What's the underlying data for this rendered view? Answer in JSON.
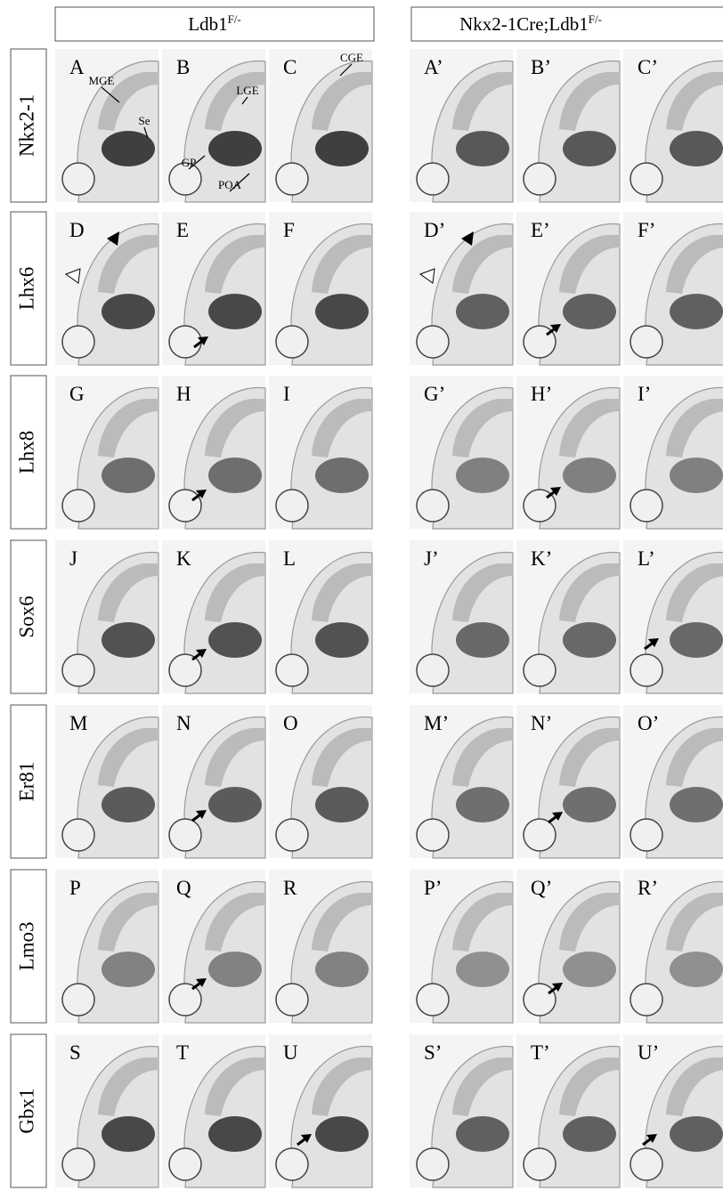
{
  "headers": [
    {
      "main": "Ldb1",
      "sup": "F/-"
    },
    {
      "main": "Nkx2-1Cre;Ldb1",
      "sup": "F/-"
    }
  ],
  "rows": [
    {
      "label": "Nkx2-1",
      "panels": [
        {
          "letter": "A",
          "annotations": [
            "MGE",
            "Se"
          ]
        },
        {
          "letter": "B",
          "annotations": [
            "LGE",
            "GP",
            "POA"
          ]
        },
        {
          "letter": "C",
          "annotations": [
            "CGE"
          ]
        },
        {
          "letter": "A’"
        },
        {
          "letter": "B’"
        },
        {
          "letter": "C’"
        }
      ]
    },
    {
      "label": "Lhx6",
      "panels": [
        {
          "letter": "D"
        },
        {
          "letter": "E"
        },
        {
          "letter": "F"
        },
        {
          "letter": "D’"
        },
        {
          "letter": "E’"
        },
        {
          "letter": "F’"
        }
      ]
    },
    {
      "label": "Lhx8",
      "panels": [
        {
          "letter": "G"
        },
        {
          "letter": "H"
        },
        {
          "letter": "I"
        },
        {
          "letter": "G’"
        },
        {
          "letter": "H’"
        },
        {
          "letter": "I’"
        }
      ]
    },
    {
      "label": "Sox6",
      "panels": [
        {
          "letter": "J"
        },
        {
          "letter": "K"
        },
        {
          "letter": "L"
        },
        {
          "letter": "J’"
        },
        {
          "letter": "K’"
        },
        {
          "letter": "L’"
        }
      ]
    },
    {
      "label": "Er81",
      "panels": [
        {
          "letter": "M"
        },
        {
          "letter": "N"
        },
        {
          "letter": "O"
        },
        {
          "letter": "M’"
        },
        {
          "letter": "N’"
        },
        {
          "letter": "O’"
        }
      ]
    },
    {
      "label": "Lmo3",
      "panels": [
        {
          "letter": "P"
        },
        {
          "letter": "Q"
        },
        {
          "letter": "R"
        },
        {
          "letter": "P’"
        },
        {
          "letter": "Q’"
        },
        {
          "letter": "R’"
        }
      ]
    },
    {
      "label": "Gbx1",
      "panels": [
        {
          "letter": "S"
        },
        {
          "letter": "T"
        },
        {
          "letter": "U"
        },
        {
          "letter": "S’"
        },
        {
          "letter": "T’"
        },
        {
          "letter": "U’"
        }
      ]
    }
  ]
}
